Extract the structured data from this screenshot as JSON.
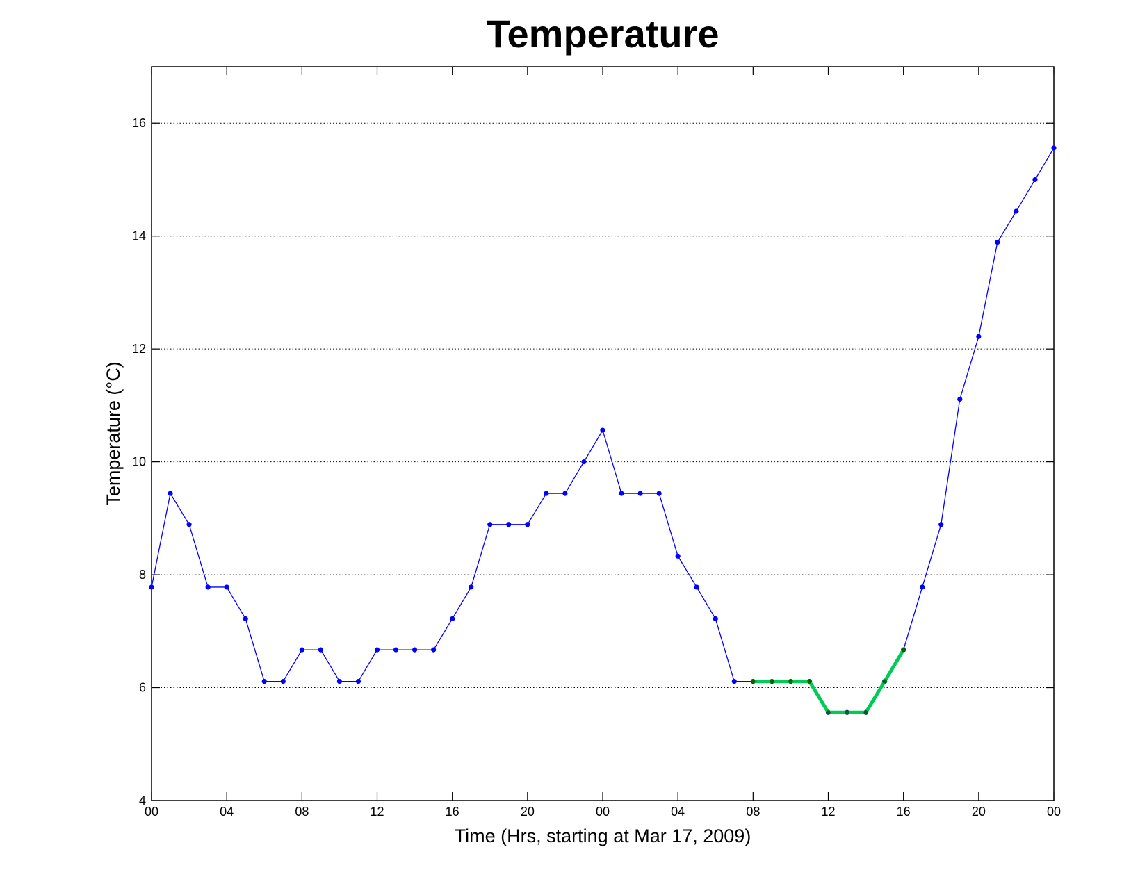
{
  "chart_data": {
    "type": "line",
    "title": "Temperature",
    "xlabel": "Time (Hrs, starting at Mar 17, 2009)",
    "ylabel": "Temperature (°C)",
    "x_unit": "hours",
    "xlim": [
      0,
      48
    ],
    "ylim": [
      4,
      17
    ],
    "x_ticks": [
      0,
      4,
      8,
      12,
      16,
      20,
      24,
      28,
      32,
      36,
      40,
      44,
      48
    ],
    "x_tick_labels": [
      "00",
      "04",
      "08",
      "12",
      "16",
      "20",
      "00",
      "04",
      "08",
      "12",
      "16",
      "20",
      "00"
    ],
    "y_ticks": [
      4,
      6,
      8,
      10,
      12,
      14,
      16
    ],
    "y_tick_labels": [
      "4",
      "6",
      "8",
      "10",
      "12",
      "14",
      "16"
    ],
    "grid": "y-dotted",
    "legend": "none",
    "series": [
      {
        "color": "#0000ff",
        "marker": "dot",
        "x": [
          0,
          1,
          2,
          3,
          4,
          5,
          6,
          7,
          8,
          9,
          10,
          11,
          12,
          13,
          14,
          15,
          16,
          17,
          18,
          19,
          20,
          21,
          22,
          23,
          24,
          25,
          26,
          27,
          28,
          29,
          30,
          31,
          32,
          33,
          34,
          35,
          36,
          37,
          38,
          39,
          40,
          41,
          42,
          43,
          44,
          45,
          46,
          47,
          48
        ],
        "values": [
          7.78,
          9.44,
          8.89,
          7.78,
          7.78,
          7.22,
          6.11,
          6.11,
          6.67,
          6.67,
          6.11,
          6.11,
          6.67,
          6.67,
          6.67,
          6.67,
          7.22,
          7.78,
          8.89,
          8.89,
          8.89,
          9.44,
          9.44,
          10.0,
          10.56,
          9.44,
          9.44,
          9.44,
          8.33,
          7.78,
          7.22,
          6.11,
          6.11,
          6.11,
          6.11,
          6.11,
          5.56,
          5.56,
          5.56,
          6.11,
          6.67,
          7.78,
          8.89,
          11.11,
          12.22,
          13.89,
          14.44,
          15.0,
          15.56
        ]
      },
      {
        "color": "#00cc55",
        "marker_color": "#006400",
        "x": [
          32,
          33,
          34,
          35,
          36,
          37,
          38,
          39,
          40
        ],
        "values": [
          6.11,
          6.11,
          6.11,
          6.11,
          5.56,
          5.56,
          5.56,
          6.11,
          6.67
        ]
      }
    ]
  }
}
